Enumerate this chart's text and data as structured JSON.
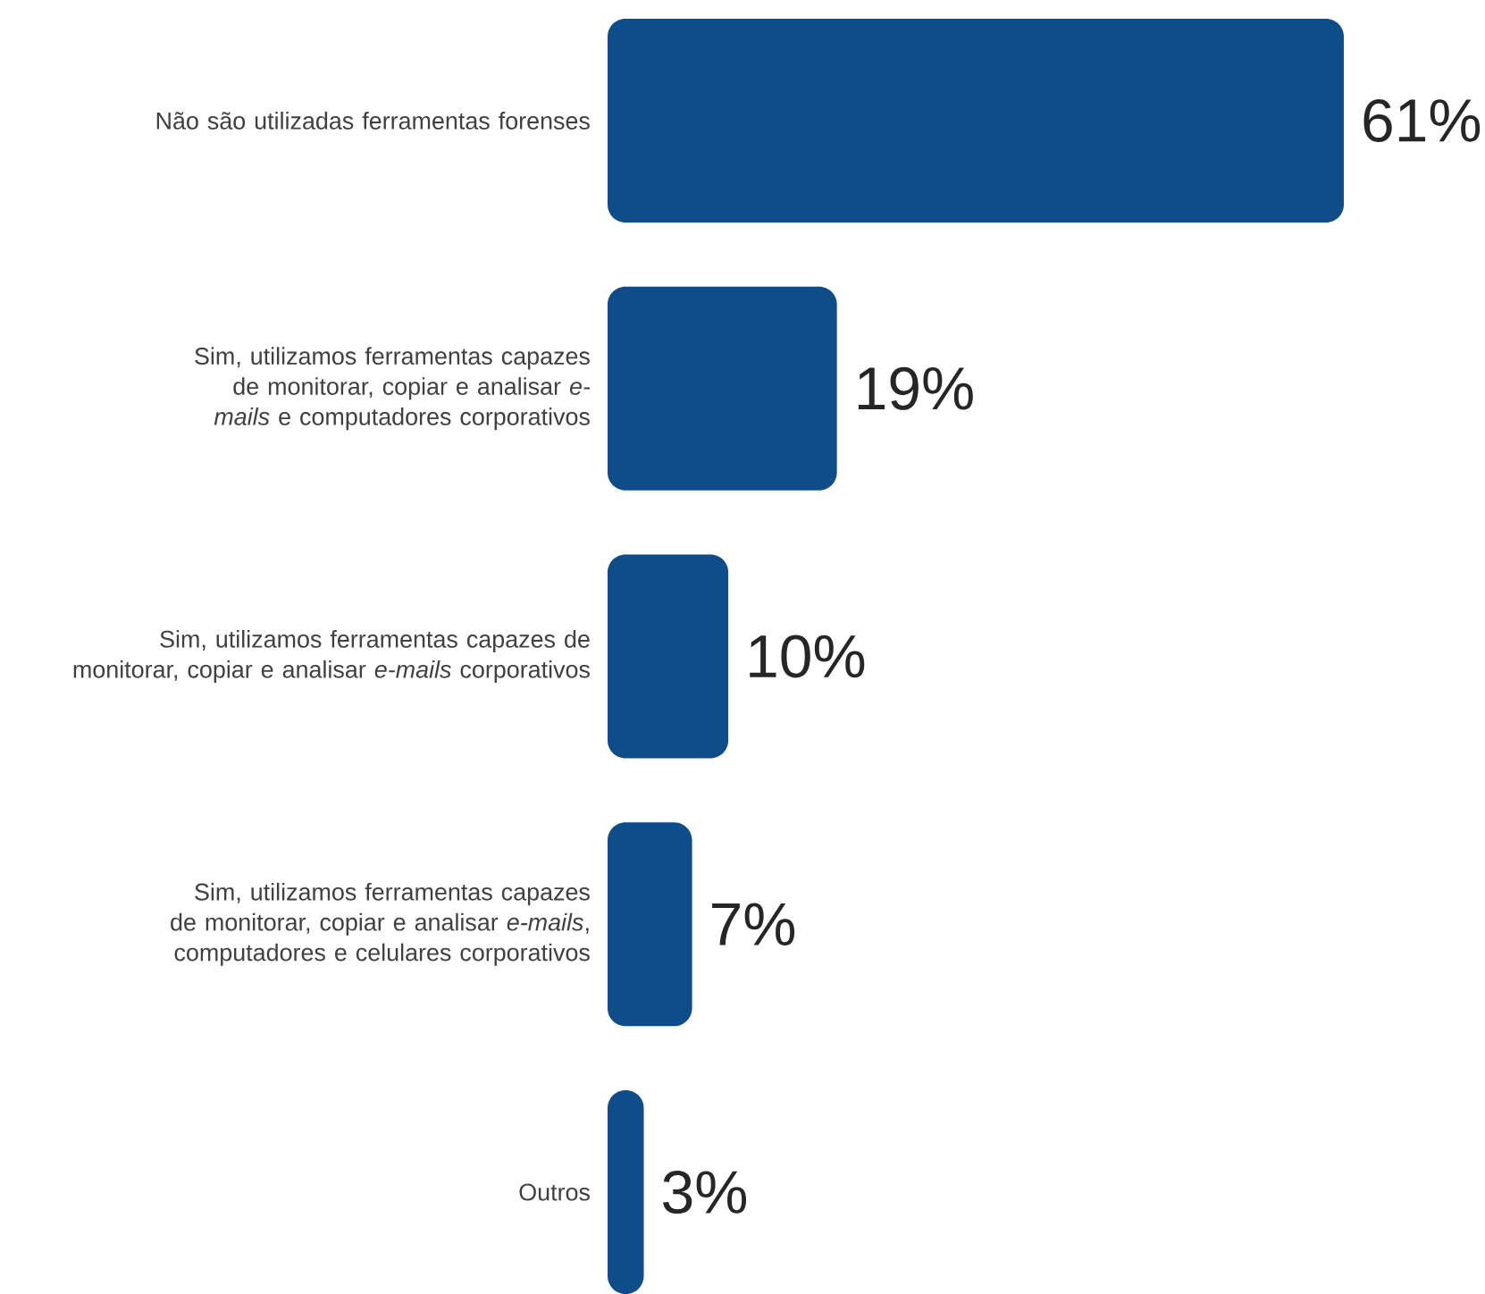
{
  "chart_data": {
    "type": "bar",
    "orientation": "horizontal",
    "color": "#0f4c8a",
    "categories": [
      "Não são utilizadas ferramentas forenses",
      "Sim, utilizamos ferramentas capazes de monitorar, copiar e analisar *e-mails* e computadores corporativos",
      "Sim, utilizamos ferramentas capazes de monitorar, copiar e analisar *e-mails* corporativos",
      "Sim, utilizamos ferramentas capazes de monitorar, copiar e analisar *e-mails*, computadores e celulares corporativos",
      "Outros"
    ],
    "values": [
      61,
      19,
      10,
      7,
      3
    ],
    "value_labels": [
      "61%",
      "19%",
      "10%",
      "7%",
      "3%"
    ]
  }
}
